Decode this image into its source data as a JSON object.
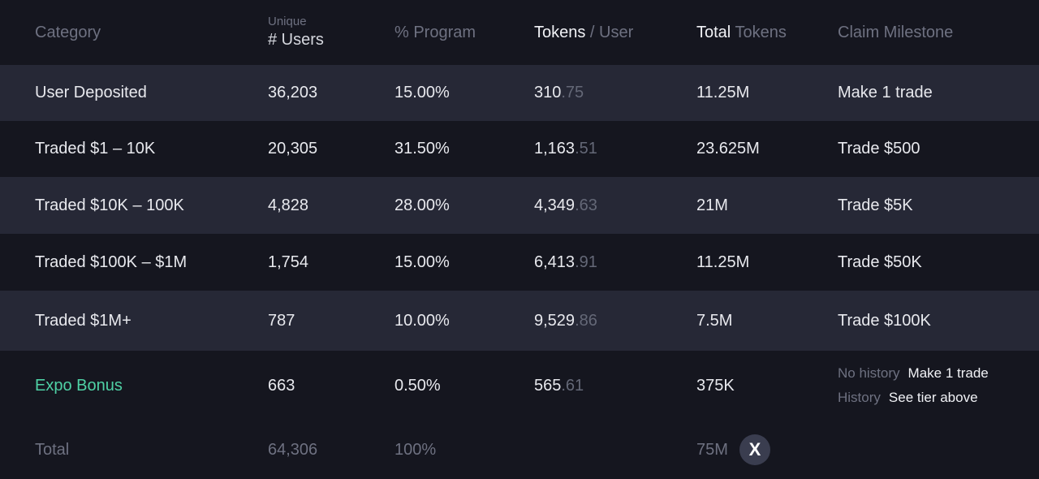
{
  "header": {
    "category": "Category",
    "users_small": "Unique",
    "users": "# Users",
    "program": "% Program",
    "tokens_user_a": "Tokens",
    "tokens_user_b": " / User",
    "total_tokens_a": "Total",
    "total_tokens_b": " Tokens",
    "milestone": "Claim Milestone"
  },
  "rows": [
    {
      "category": "User Deposited",
      "users": "36,203",
      "program": "15.00%",
      "tok_int": "310",
      "tok_dec": ".75",
      "total": "11.25M",
      "milestone": "Make 1 trade"
    },
    {
      "category": "Traded $1 – 10K",
      "users": "20,305",
      "program": "31.50%",
      "tok_int": "1,163",
      "tok_dec": ".51",
      "total": "23.625M",
      "milestone": "Trade $500"
    },
    {
      "category": "Traded $10K – 100K",
      "users": "4,828",
      "program": "28.00%",
      "tok_int": "4,349",
      "tok_dec": ".63",
      "total": "21M",
      "milestone": "Trade $5K"
    },
    {
      "category": "Traded $100K – $1M",
      "users": "1,754",
      "program": "15.00%",
      "tok_int": "6,413",
      "tok_dec": ".91",
      "total": "11.25M",
      "milestone": "Trade $50K"
    },
    {
      "category": "Traded $1M+",
      "users": "787",
      "program": "10.00%",
      "tok_int": "9,529",
      "tok_dec": ".86",
      "total": "7.5M",
      "milestone": "Trade $100K"
    }
  ],
  "bonus": {
    "category": "Expo Bonus",
    "users": "663",
    "program": "0.50%",
    "tok_int": "565",
    "tok_dec": ".61",
    "total": "375K",
    "no_history_label": "No history",
    "no_history_value": "Make 1 trade",
    "history_label": "History",
    "history_value": "See tier above"
  },
  "total": {
    "label": "Total",
    "users": "64,306",
    "program": "100%",
    "total": "75M",
    "icon": "x-logo-icon",
    "icon_glyph": "X"
  },
  "colors": {
    "background": "#15161f",
    "band": "#262836",
    "accent_green": "#4fd1a5"
  }
}
